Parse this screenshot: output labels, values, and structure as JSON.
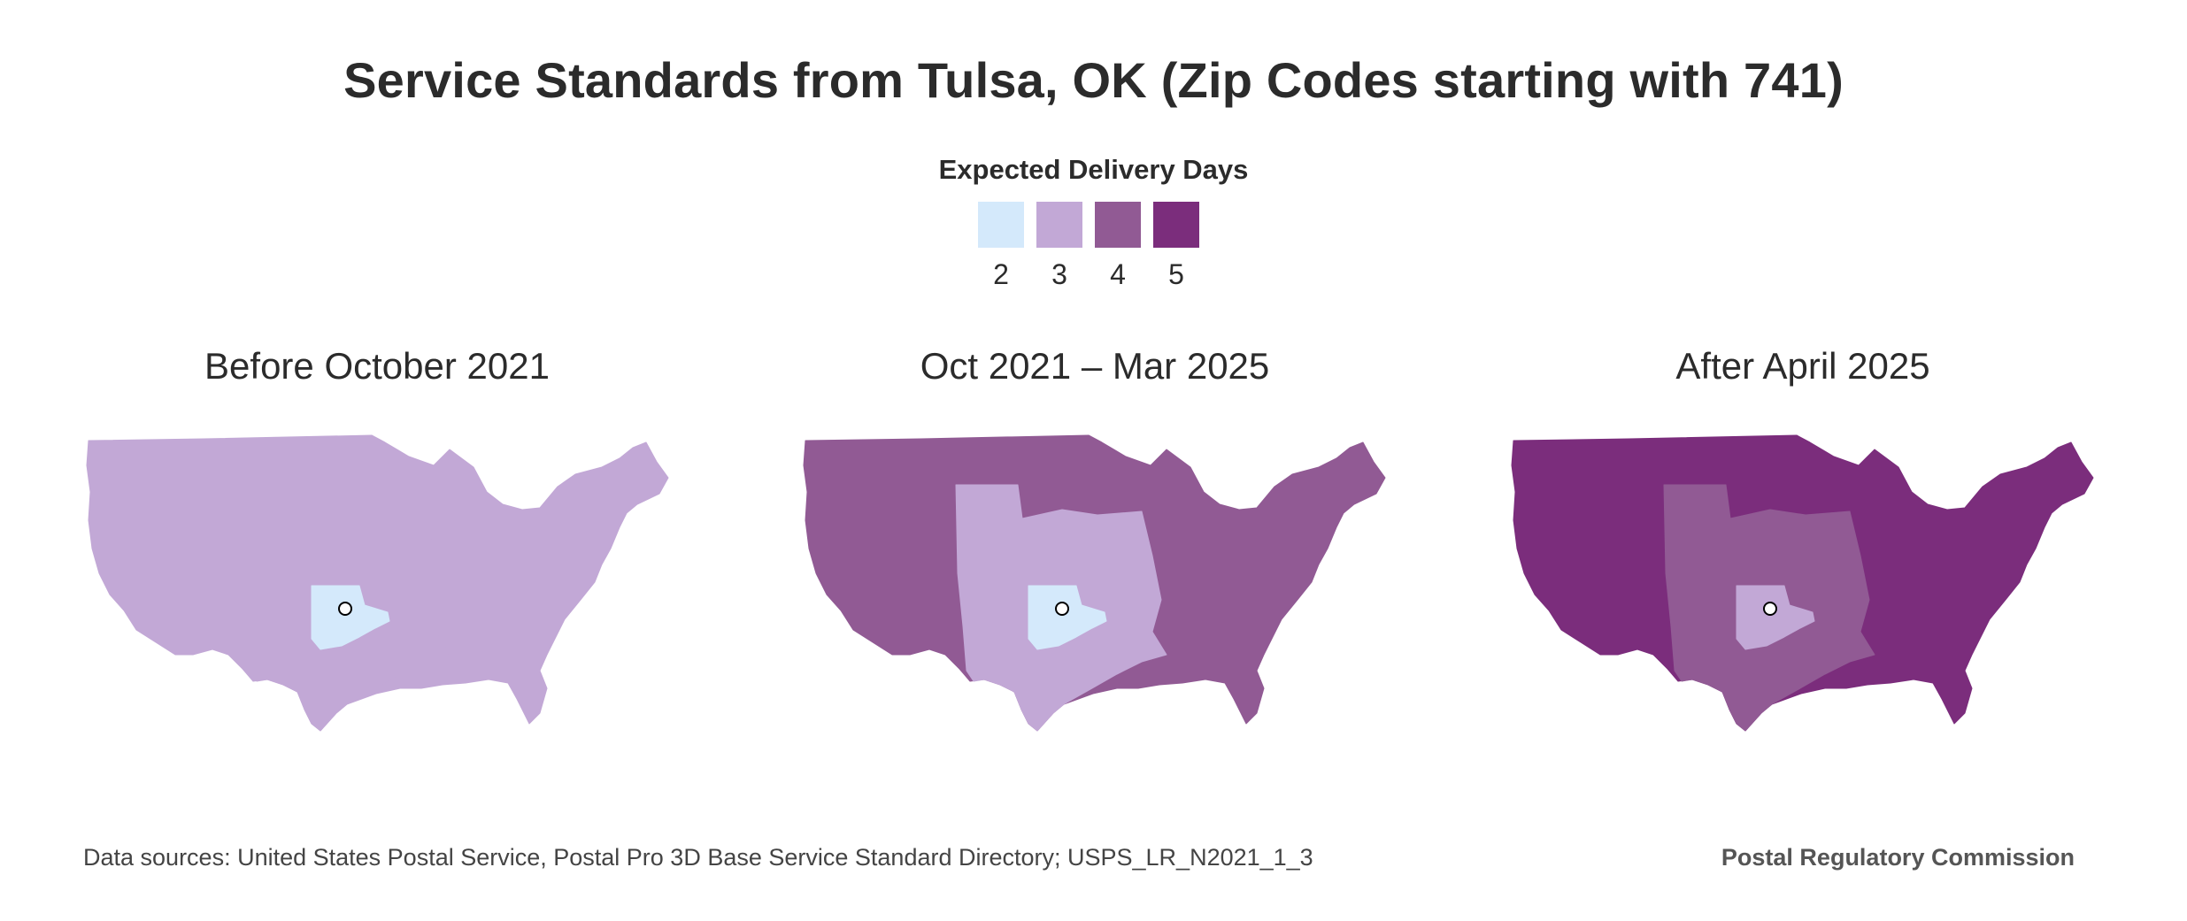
{
  "title": "Service Standards from Tulsa, OK (Zip Codes starting with 741)",
  "legend": {
    "title": "Expected Delivery Days",
    "items": [
      {
        "label": "2",
        "color": "#d4e9fb"
      },
      {
        "label": "3",
        "color": "#c2a8d6"
      },
      {
        "label": "4",
        "color": "#915a94"
      },
      {
        "label": "5",
        "color": "#7b2d7c"
      }
    ]
  },
  "maps": [
    {
      "title": "Before October 2021",
      "outer_days": "3",
      "middle_days": "3",
      "origin_days": "2"
    },
    {
      "title": "Oct 2021 – Mar 2025",
      "outer_days": "4",
      "middle_days": "3",
      "origin_days": "2"
    },
    {
      "title": "After April 2025",
      "outer_days": "5",
      "middle_days": "4",
      "origin_days": "3"
    }
  ],
  "origin_marker": "Tulsa, OK",
  "footer": {
    "source": "Data sources: United States Postal Service, Postal Pro 3D Base Service Standard Directory; USPS_LR_N2021_1_3",
    "org": "Postal Regulatory Commission"
  }
}
